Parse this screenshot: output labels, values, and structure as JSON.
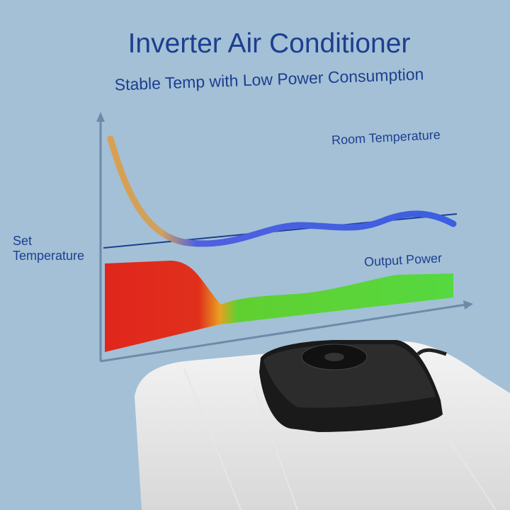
{
  "title": "Inverter Air Conditioner",
  "subtitle": "Stable Temp with Low Power Consumption",
  "labels": {
    "room_temperature": "Room Temperature",
    "set_temperature_line1": "Set",
    "set_temperature_line2": "Temperature",
    "output_power": "Output Power"
  },
  "colors": {
    "background": "#a3c0d6",
    "text": "#1d3f8f",
    "room_temp_curve": "#3a5fe0",
    "power_high": "#e0261c",
    "power_low": "#4fd63a",
    "unit": "#1a1a1a"
  }
}
